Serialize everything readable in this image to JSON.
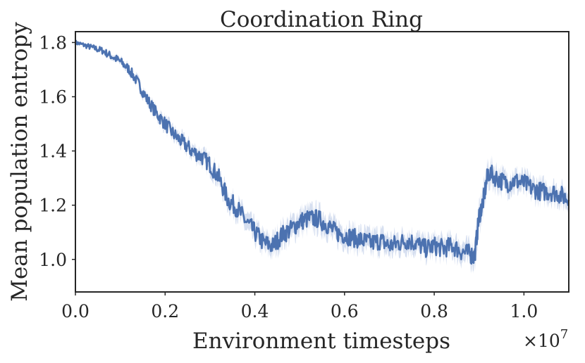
{
  "chart_data": {
    "type": "line",
    "title": "Coordination Ring",
    "xlabel": "Environment timesteps",
    "ylabel": "Mean population entropy",
    "x_multiplier_label": "×10",
    "x_multiplier_exponent": "7",
    "x_scale": 10000000,
    "xlim": [
      0.0,
      1.1
    ],
    "ylim": [
      0.88,
      1.84
    ],
    "xticks": [
      {
        "value": 0.0,
        "label": "0.0"
      },
      {
        "value": 0.2,
        "label": "0.2"
      },
      {
        "value": 0.4,
        "label": "0.4"
      },
      {
        "value": 0.6,
        "label": "0.6"
      },
      {
        "value": 0.8,
        "label": "0.8"
      },
      {
        "value": 1.0,
        "label": "1.0"
      }
    ],
    "yticks": [
      {
        "value": 1.0,
        "label": "1.0"
      },
      {
        "value": 1.2,
        "label": "1.2"
      },
      {
        "value": 1.4,
        "label": "1.4"
      },
      {
        "value": 1.6,
        "label": "1.6"
      },
      {
        "value": 1.8,
        "label": "1.8"
      }
    ],
    "grid": false,
    "line_color": "#4c72b0",
    "band_color": "#c5d2ea",
    "series": [
      {
        "x": [
          0.0,
          0.02,
          0.04,
          0.06,
          0.08,
          0.1,
          0.12,
          0.14,
          0.16,
          0.18,
          0.2,
          0.22,
          0.24,
          0.26,
          0.28,
          0.3,
          0.32,
          0.34,
          0.36,
          0.38,
          0.4,
          0.42,
          0.44,
          0.46,
          0.48,
          0.5,
          0.52,
          0.54,
          0.56,
          0.58,
          0.6,
          0.62,
          0.64,
          0.66,
          0.68,
          0.7,
          0.72,
          0.74,
          0.76,
          0.78,
          0.8,
          0.82,
          0.84,
          0.86,
          0.88,
          0.89,
          0.9,
          0.91,
          0.92,
          0.94,
          0.96,
          0.98,
          1.0,
          1.02,
          1.04,
          1.06,
          1.08,
          1.1
        ],
        "y": [
          1.8,
          1.79,
          1.78,
          1.77,
          1.75,
          1.73,
          1.7,
          1.65,
          1.59,
          1.54,
          1.5,
          1.46,
          1.43,
          1.4,
          1.38,
          1.35,
          1.3,
          1.22,
          1.19,
          1.14,
          1.1,
          1.06,
          1.05,
          1.09,
          1.11,
          1.14,
          1.15,
          1.15,
          1.13,
          1.1,
          1.09,
          1.08,
          1.07,
          1.06,
          1.07,
          1.05,
          1.06,
          1.07,
          1.06,
          1.04,
          1.05,
          1.04,
          1.05,
          1.03,
          1.02,
          1.01,
          1.16,
          1.22,
          1.32,
          1.3,
          1.28,
          1.29,
          1.28,
          1.26,
          1.25,
          1.25,
          1.24,
          1.22
        ],
        "ci_halfwidth": [
          0.005,
          0.006,
          0.008,
          0.01,
          0.012,
          0.014,
          0.016,
          0.018,
          0.02,
          0.022,
          0.024,
          0.025,
          0.026,
          0.027,
          0.028,
          0.03,
          0.032,
          0.034,
          0.036,
          0.038,
          0.04,
          0.04,
          0.042,
          0.044,
          0.045,
          0.046,
          0.047,
          0.046,
          0.045,
          0.044,
          0.043,
          0.043,
          0.044,
          0.045,
          0.044,
          0.043,
          0.042,
          0.042,
          0.041,
          0.04,
          0.04,
          0.041,
          0.042,
          0.043,
          0.045,
          0.05,
          0.055,
          0.06,
          0.05,
          0.045,
          0.042,
          0.04,
          0.04,
          0.04,
          0.039,
          0.038,
          0.038,
          0.038
        ]
      }
    ]
  }
}
